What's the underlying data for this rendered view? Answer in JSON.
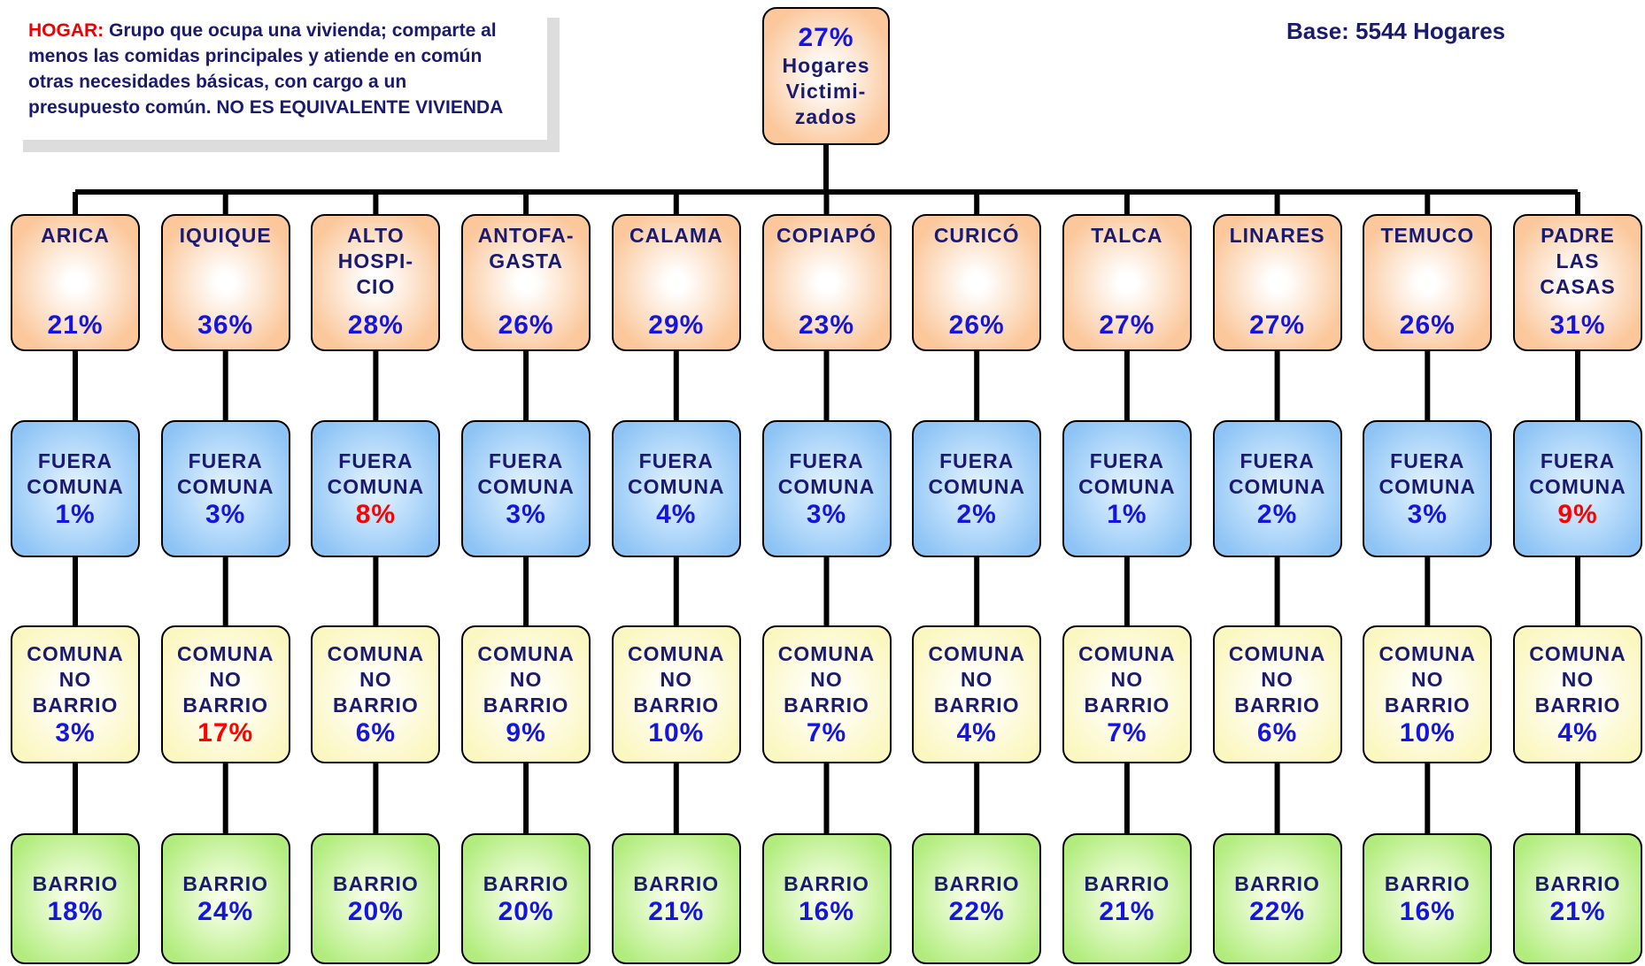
{
  "note": {
    "term": "HOGAR:",
    "text": "Grupo que ocupa una vivienda; comparte al menos las comidas principales y atiende en común otras necesidades básicas, con cargo a un presupuesto común. NO ES EQUIVALENTE VIVIENDA"
  },
  "base": "Base: 5544 Hogares",
  "root": {
    "value": "27%",
    "label": "Hogares\nVictimi-\nzados"
  },
  "levels": [
    "FUERA\nCOMUNA",
    "COMUNA\nNO\nBARRIO",
    "BARRIO"
  ],
  "alert_color": "#ff0000",
  "cities": [
    {
      "name": "ARICA",
      "total": "21%",
      "cells": [
        {
          "value": "1%"
        },
        {
          "value": "3%"
        },
        {
          "value": "18%"
        }
      ]
    },
    {
      "name": "IQUIQUE",
      "total": "36%",
      "cells": [
        {
          "value": "3%"
        },
        {
          "value": "17%",
          "alert": true
        },
        {
          "value": "24%"
        }
      ]
    },
    {
      "name": "ALTO\nHOSPI-\nCIO",
      "total": "28%",
      "cells": [
        {
          "value": "8%",
          "alert": true
        },
        {
          "value": "6%"
        },
        {
          "value": "20%"
        }
      ]
    },
    {
      "name": "ANTOFA-\nGASTA",
      "total": "26%",
      "cells": [
        {
          "value": "3%"
        },
        {
          "value": "9%"
        },
        {
          "value": "20%"
        }
      ]
    },
    {
      "name": "CALAMA",
      "total": "29%",
      "cells": [
        {
          "value": "4%"
        },
        {
          "value": "10%"
        },
        {
          "value": "21%"
        }
      ]
    },
    {
      "name": "COPIAPÓ",
      "total": "23%",
      "cells": [
        {
          "value": "3%"
        },
        {
          "value": "7%"
        },
        {
          "value": "16%"
        }
      ]
    },
    {
      "name": "CURICÓ",
      "total": "26%",
      "cells": [
        {
          "value": "2%"
        },
        {
          "value": "4%"
        },
        {
          "value": "22%"
        }
      ]
    },
    {
      "name": "TALCA",
      "total": "27%",
      "cells": [
        {
          "value": "1%"
        },
        {
          "value": "7%"
        },
        {
          "value": "21%"
        }
      ]
    },
    {
      "name": "LINARES",
      "total": "27%",
      "cells": [
        {
          "value": "2%"
        },
        {
          "value": "6%"
        },
        {
          "value": "22%"
        }
      ]
    },
    {
      "name": "TEMUCO",
      "total": "26%",
      "cells": [
        {
          "value": "3%"
        },
        {
          "value": "10%"
        },
        {
          "value": "16%"
        }
      ]
    },
    {
      "name": "PADRE\nLAS\nCASAS",
      "total": "31%",
      "cells": [
        {
          "value": "9%",
          "alert": true
        },
        {
          "value": "4%"
        },
        {
          "value": "21%"
        }
      ]
    }
  ]
}
